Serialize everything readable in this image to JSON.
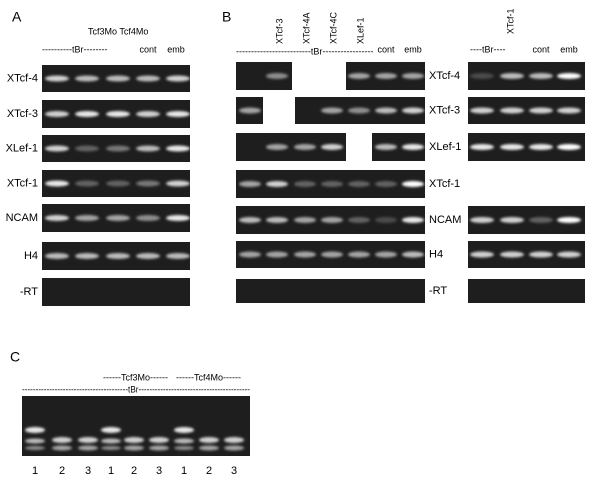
{
  "panel_a": {
    "label": "A",
    "header_mo": "Tcf3Mo Tcf4Mo",
    "header_tbr": "----------tBr--------",
    "header_cont": "cont",
    "header_emb": "emb",
    "rows": [
      "XTcf-4",
      "XTcf-3",
      "XLef-1",
      "XTcf-1",
      "NCAM",
      "H4",
      "-RT"
    ]
  },
  "panel_b": {
    "label": "B",
    "lanes": [
      "XTcf-3",
      "XTcf-4A",
      "XTcf-4C",
      "XLef-1"
    ],
    "header_tbr": "-------------------------tBr-----------------",
    "header_cont": "cont",
    "header_emb": "emb",
    "rows": [
      "XTcf-4",
      "XTcf-3",
      "XLef-1",
      "XTcf-1",
      "NCAM",
      "H4",
      "-RT"
    ]
  },
  "panel_b2": {
    "lane": "XTcf-1",
    "header_tbr": "----tBr----",
    "header_cont": "cont",
    "header_emb": "emb"
  },
  "panel_c": {
    "label": "C",
    "header_tcf3": "------Tcf3Mo------",
    "header_tcf4": "------Tcf4Mo------",
    "header_tbr": "---------------------------------------tBr-----------------------------------------",
    "lanes": [
      "1",
      "2",
      "3",
      "1",
      "2",
      "3",
      "1",
      "2",
      "3"
    ]
  }
}
